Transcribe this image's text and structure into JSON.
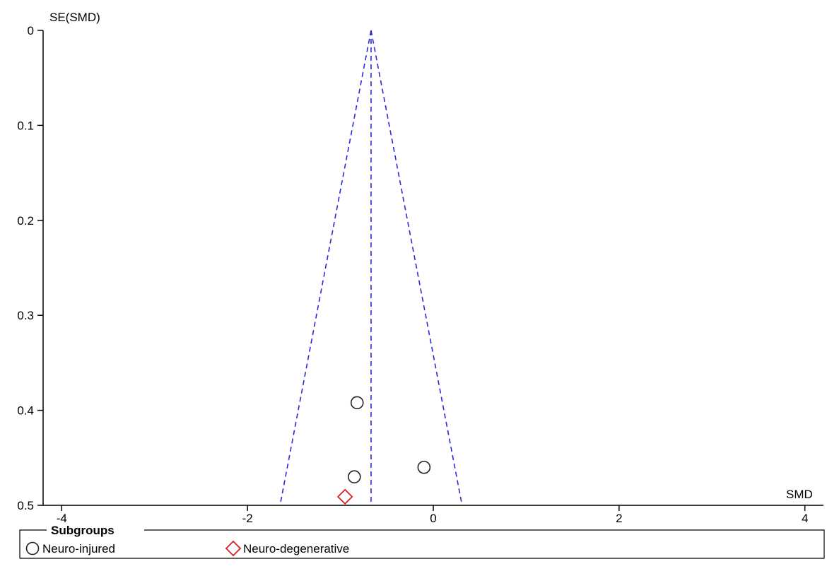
{
  "chart_data": {
    "type": "scatter",
    "title": "",
    "xlabel": "SMD",
    "ylabel": "SE(SMD)",
    "xlim": [
      -4.2,
      4.2
    ],
    "ylim": [
      0,
      0.5
    ],
    "y_reversed": true,
    "grid": false,
    "x_ticks": [
      -4,
      -2,
      0,
      2,
      4
    ],
    "x_tick_labels": [
      "-4",
      "-2",
      "0",
      "2",
      "4"
    ],
    "y_ticks": [
      0,
      0.1,
      0.2,
      0.3,
      0.4,
      0.5
    ],
    "y_tick_labels": [
      "0",
      "0.1",
      "0.2",
      "0.3",
      "0.4",
      "0.5"
    ],
    "pooled_estimate": -0.67,
    "funnel_z": 1.96,
    "funnel_color": "#2b2bd6",
    "series": [
      {
        "name": "Neuro-injured",
        "marker": "circle",
        "color": "#222222",
        "points": [
          {
            "x": -0.82,
            "y": 0.392
          },
          {
            "x": -0.1,
            "y": 0.46
          },
          {
            "x": -0.85,
            "y": 0.47
          }
        ]
      },
      {
        "name": "Neuro-degenerative",
        "marker": "diamond",
        "color": "#d42020",
        "points": [
          {
            "x": -0.95,
            "y": 0.491
          }
        ]
      }
    ],
    "legend": {
      "title": "Subgroups",
      "placement": "bottom"
    }
  }
}
